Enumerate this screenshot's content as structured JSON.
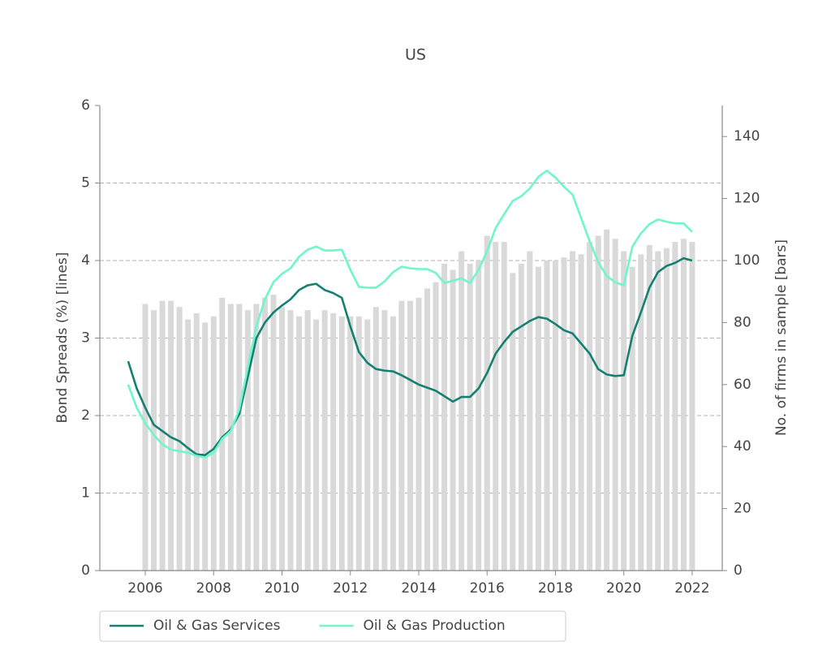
{
  "chart_data": {
    "type": "combo",
    "title": "US",
    "y_label": "Bond Spreads (%)  [lines]",
    "y2_label": "No. of firms in sample [bars]",
    "xlim": [
      2004.67,
      2022.88
    ],
    "xticks": [
      2006,
      2008,
      2010,
      2012,
      2014,
      2016,
      2018,
      2020,
      2022
    ],
    "ylim": [
      0,
      6
    ],
    "yticks": [
      0,
      1,
      2,
      3,
      4,
      5,
      6
    ],
    "y2lim": [
      0,
      150
    ],
    "y2ticks": [
      0,
      20,
      40,
      60,
      80,
      100,
      120,
      140
    ],
    "grid": true,
    "legend": "bottom",
    "series": [
      {
        "type": "bar",
        "axis": "y2",
        "color": "#d9d9d9",
        "x": [
          2006,
          2006.25,
          2006.5,
          2006.75,
          2007,
          2007.25,
          2007.5,
          2007.75,
          2008,
          2008.25,
          2008.5,
          2008.75,
          2009,
          2009.25,
          2009.5,
          2009.75,
          2010,
          2010.25,
          2010.5,
          2010.75,
          2011,
          2011.25,
          2011.5,
          2011.75,
          2012,
          2012.25,
          2012.5,
          2012.75,
          2013,
          2013.25,
          2013.5,
          2013.75,
          2014,
          2014.25,
          2014.5,
          2014.75,
          2015,
          2015.25,
          2015.5,
          2015.75,
          2016,
          2016.25,
          2016.5,
          2016.75,
          2017,
          2017.25,
          2017.5,
          2017.75,
          2018,
          2018.25,
          2018.5,
          2018.75,
          2019,
          2019.25,
          2019.5,
          2019.75,
          2020,
          2020.25,
          2020.5,
          2020.75,
          2021,
          2021.25,
          2021.5,
          2021.75,
          2022
        ],
        "values": [
          86,
          84,
          87,
          87,
          85,
          81,
          83,
          80,
          82,
          88,
          86,
          86,
          84,
          86,
          88,
          89,
          85,
          84,
          82,
          84,
          81,
          84,
          83,
          82,
          82,
          82,
          81,
          85,
          84,
          82,
          87,
          87,
          88,
          91,
          93,
          99,
          97,
          103,
          99,
          100,
          108,
          106,
          106,
          96,
          99,
          103,
          98,
          100,
          100,
          101,
          103,
          102,
          106,
          108,
          110,
          107,
          103,
          98,
          102,
          105,
          103,
          104,
          106,
          107,
          106
        ]
      },
      {
        "type": "line",
        "name": "Oil & Gas Services",
        "color": "#138072",
        "x": [
          2005.5,
          2005.75,
          2006,
          2006.25,
          2006.5,
          2006.75,
          2007,
          2007.25,
          2007.5,
          2007.75,
          2008,
          2008.25,
          2008.5,
          2008.75,
          2009,
          2009.25,
          2009.5,
          2009.75,
          2010,
          2010.25,
          2010.5,
          2010.75,
          2011,
          2011.25,
          2011.5,
          2011.75,
          2012,
          2012.25,
          2012.5,
          2012.75,
          2013,
          2013.25,
          2013.5,
          2013.75,
          2014,
          2014.25,
          2014.5,
          2014.75,
          2015,
          2015.25,
          2015.5,
          2015.75,
          2016,
          2016.25,
          2016.5,
          2016.75,
          2017,
          2017.25,
          2017.5,
          2017.75,
          2018,
          2018.25,
          2018.5,
          2018.75,
          2019,
          2019.25,
          2019.5,
          2019.75,
          2020,
          2020.25,
          2020.5,
          2020.75,
          2021,
          2021.25,
          2021.5,
          2021.75,
          2022
        ],
        "values": [
          2.7,
          2.35,
          2.1,
          1.88,
          1.8,
          1.72,
          1.67,
          1.58,
          1.5,
          1.49,
          1.57,
          1.72,
          1.82,
          2.02,
          2.5,
          3.0,
          3.2,
          3.33,
          3.42,
          3.5,
          3.62,
          3.68,
          3.7,
          3.62,
          3.58,
          3.52,
          3.15,
          2.82,
          2.68,
          2.6,
          2.58,
          2.57,
          2.52,
          2.46,
          2.4,
          2.36,
          2.32,
          2.25,
          2.18,
          2.24,
          2.24,
          2.35,
          2.55,
          2.8,
          2.95,
          3.08,
          3.15,
          3.22,
          3.27,
          3.25,
          3.18,
          3.1,
          3.06,
          2.93,
          2.8,
          2.6,
          2.53,
          2.51,
          2.52,
          3.03,
          3.33,
          3.65,
          3.85,
          3.93,
          3.97,
          4.03,
          4.0
        ]
      },
      {
        "type": "line",
        "name": "Oil & Gas Production",
        "color": "#70f5cc",
        "x": [
          2005.5,
          2005.75,
          2006,
          2006.25,
          2006.5,
          2006.75,
          2007,
          2007.25,
          2007.5,
          2007.75,
          2008,
          2008.25,
          2008.5,
          2008.75,
          2009,
          2009.25,
          2009.5,
          2009.75,
          2010,
          2010.25,
          2010.5,
          2010.75,
          2011,
          2011.25,
          2011.5,
          2011.75,
          2012,
          2012.25,
          2012.5,
          2012.75,
          2013,
          2013.25,
          2013.5,
          2013.75,
          2014,
          2014.25,
          2014.5,
          2014.75,
          2015,
          2015.25,
          2015.5,
          2015.75,
          2016,
          2016.25,
          2016.5,
          2016.75,
          2017,
          2017.25,
          2017.5,
          2017.75,
          2018,
          2018.25,
          2018.5,
          2018.75,
          2019,
          2019.25,
          2019.5,
          2019.75,
          2020,
          2020.25,
          2020.5,
          2020.75,
          2021,
          2021.25,
          2021.5,
          2021.75,
          2022
        ],
        "values": [
          2.4,
          2.1,
          1.9,
          1.75,
          1.63,
          1.56,
          1.54,
          1.52,
          1.48,
          1.46,
          1.52,
          1.7,
          1.8,
          2.08,
          2.62,
          3.15,
          3.5,
          3.72,
          3.83,
          3.9,
          4.05,
          4.14,
          4.18,
          4.13,
          4.13,
          4.14,
          3.88,
          3.66,
          3.65,
          3.65,
          3.73,
          3.85,
          3.92,
          3.9,
          3.89,
          3.89,
          3.84,
          3.71,
          3.74,
          3.77,
          3.71,
          3.88,
          4.12,
          4.42,
          4.6,
          4.77,
          4.83,
          4.93,
          5.08,
          5.16,
          5.07,
          4.95,
          4.85,
          4.55,
          4.25,
          3.98,
          3.8,
          3.72,
          3.68,
          4.18,
          4.35,
          4.47,
          4.53,
          4.5,
          4.48,
          4.48,
          4.37
        ]
      }
    ]
  }
}
